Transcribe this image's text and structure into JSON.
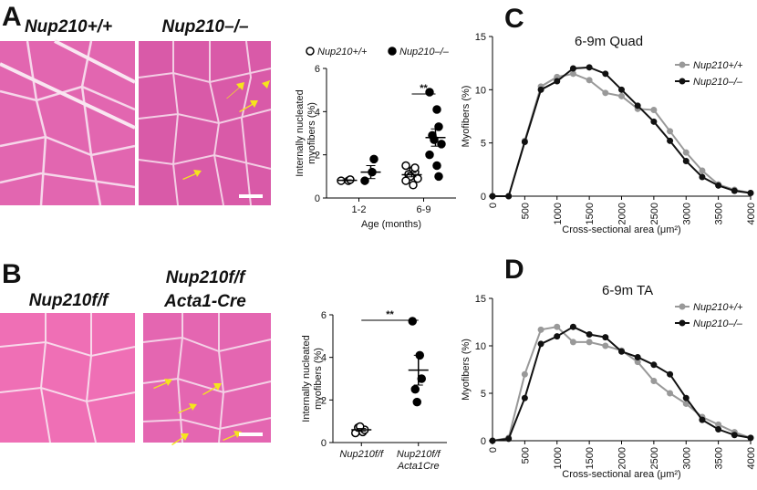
{
  "panel_labels": [
    "A",
    "B",
    "C",
    "D"
  ],
  "image_labels": [
    "Nup210+/+",
    "Nup210–/–",
    "Nup210f/f",
    [
      "Nup210f/f",
      "Acta1-Cre"
    ]
  ],
  "chart_data": [
    {
      "type": "dot",
      "ylabel": [
        "Internally nucleated",
        "myofibers (%)"
      ],
      "xlabel": "Age (months)",
      "categories": [
        "1-2",
        "6-9"
      ],
      "ylim": [
        0,
        6
      ],
      "yticks": [
        0,
        2,
        4,
        6
      ],
      "significance": "**",
      "series": [
        {
          "name": "Nup210+/+",
          "color": "#000000",
          "filled": false,
          "values": [
            [
              0.8,
              0.8,
              0.85
            ],
            [
              1.5,
              1.3,
              1.2,
              1.1,
              1.0,
              0.9,
              0.8,
              0.6,
              1.4
            ]
          ],
          "mean": [
            0.82,
            1.08
          ],
          "sem": [
            0.02,
            0.1
          ]
        },
        {
          "name": "Nup210–/–",
          "color": "#000000",
          "filled": true,
          "values": [
            [
              0.8,
              1.2,
              1.8
            ],
            [
              4.9,
              4.1,
              3.3,
              2.9,
              2.7,
              2.5,
              2.0,
              1.5,
              1.0
            ]
          ],
          "mean": [
            1.2,
            2.8
          ],
          "sem": [
            0.3,
            0.4
          ]
        }
      ]
    },
    {
      "type": "dot",
      "ylabel": [
        "Internally nucleated",
        "myofibers (%)"
      ],
      "categories": [
        "Nup210f/f",
        [
          "Nup210f/f",
          "Acta1Cre"
        ]
      ],
      "ylim": [
        0,
        6
      ],
      "yticks": [
        0,
        2,
        4,
        6
      ],
      "significance": "**",
      "groups": [
        {
          "color": "#000000",
          "filled": false,
          "values": [
            0.45,
            0.5,
            0.6,
            0.7,
            0.75
          ],
          "mean": 0.6,
          "sem": 0.06
        },
        {
          "color": "#000000",
          "filled": true,
          "values": [
            5.7,
            4.1,
            3.0,
            2.5,
            1.9
          ],
          "mean": 3.4,
          "sem": 0.7
        }
      ]
    },
    {
      "type": "line",
      "title": "6-9m Quad",
      "xlabel": "Cross-sectional area (μm²)",
      "ylabel": "Myofibers (%)",
      "x": [
        0,
        250,
        500,
        750,
        1000,
        1250,
        1500,
        1750,
        2000,
        2250,
        2500,
        2750,
        3000,
        3250,
        3500,
        3750,
        4000
      ],
      "xlim": [
        0,
        4000
      ],
      "xticks": [
        0,
        500,
        1000,
        1500,
        2000,
        2500,
        3000,
        3500,
        4000
      ],
      "ylim": [
        0,
        15
      ],
      "yticks": [
        0,
        5,
        10,
        15
      ],
      "series": [
        {
          "name": "Nup210+/+",
          "color": "#999999",
          "values": [
            0,
            0,
            5.2,
            10.3,
            11.2,
            11.5,
            10.9,
            9.7,
            9.4,
            8.2,
            8.1,
            6.1,
            4.1,
            2.4,
            1.1,
            0.6,
            0.3
          ]
        },
        {
          "name": "Nup210–/–",
          "color": "#111111",
          "values": [
            0,
            0,
            5.1,
            10.0,
            10.8,
            12.0,
            12.1,
            11.5,
            10.0,
            8.5,
            7.0,
            5.2,
            3.3,
            1.8,
            1.0,
            0.5,
            0.3
          ]
        }
      ]
    },
    {
      "type": "line",
      "title": "6-9m TA",
      "xlabel": "Cross-sectional area (μm²)",
      "ylabel": "Myofibers (%)",
      "x": [
        0,
        250,
        500,
        750,
        1000,
        1250,
        1500,
        1750,
        2000,
        2250,
        2500,
        2750,
        3000,
        3250,
        3500,
        3750,
        4000
      ],
      "xlim": [
        0,
        4000
      ],
      "xticks": [
        0,
        500,
        1000,
        1500,
        2000,
        2500,
        3000,
        3500,
        4000
      ],
      "ylim": [
        0,
        15
      ],
      "yticks": [
        0,
        5,
        10,
        15
      ],
      "series": [
        {
          "name": "Nup210+/+",
          "color": "#999999",
          "values": [
            0,
            0.3,
            7.0,
            11.7,
            12.0,
            10.4,
            10.4,
            10.0,
            9.5,
            8.3,
            6.3,
            5.0,
            3.9,
            2.5,
            1.7,
            0.9,
            0.3
          ]
        },
        {
          "name": "Nup210–/–",
          "color": "#111111",
          "values": [
            0,
            0.2,
            4.5,
            10.2,
            11.0,
            12.0,
            11.2,
            10.9,
            9.4,
            8.8,
            8.0,
            7.0,
            4.5,
            2.2,
            1.2,
            0.6,
            0.3
          ]
        }
      ]
    }
  ]
}
